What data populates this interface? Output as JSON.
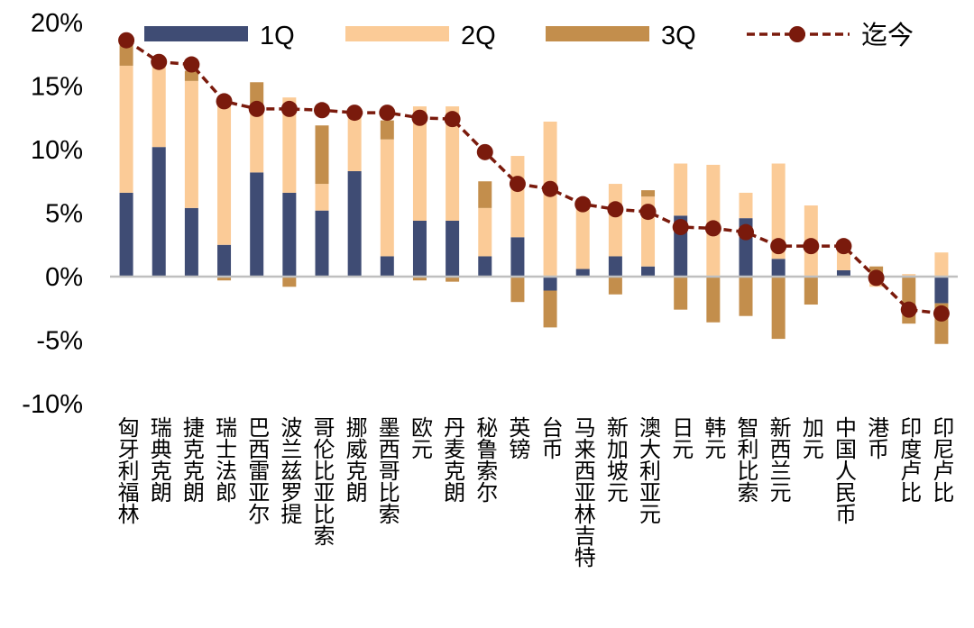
{
  "chart_data": {
    "type": "bar",
    "stacked": true,
    "categories": [
      "匈牙利福林",
      "瑞典克朗",
      "捷克克朗",
      "瑞士法郎",
      "巴西雷亚尔",
      "波兰兹罗提",
      "哥伦比亚比索",
      "挪威克朗",
      "墨西哥比索",
      "欧元",
      "丹麦克朗",
      "秘鲁索尔",
      "英镑",
      "台币",
      "马来西亚林吉特",
      "新加坡元",
      "澳大利亚元",
      "日元",
      "韩元",
      "智利比索",
      "新西兰元",
      "加元",
      "中国人民币",
      "港币",
      "印度卢比",
      "印尼卢比"
    ],
    "series": [
      {
        "name": "1Q",
        "color": "#3F4C74",
        "values": [
          6.6,
          10.2,
          5.4,
          2.5,
          8.2,
          6.6,
          5.2,
          8.3,
          1.6,
          4.4,
          4.4,
          1.6,
          3.1,
          -1.1,
          0.6,
          1.6,
          0.8,
          4.8,
          0.0,
          4.6,
          1.4,
          0.0,
          0.5,
          0.0,
          0.0,
          -2.1
        ]
      },
      {
        "name": "2Q",
        "color": "#FBCB97",
        "values": [
          10.0,
          6.7,
          10.0,
          11.2,
          4.8,
          7.5,
          2.1,
          4.6,
          9.2,
          9.0,
          9.0,
          3.8,
          6.4,
          12.2,
          5.0,
          5.7,
          5.5,
          4.1,
          8.8,
          2.0,
          7.5,
          5.6,
          1.9,
          -0.8,
          0.2,
          1.9
        ]
      },
      {
        "name": "3Q",
        "color": "#C38E4C",
        "values": [
          1.8,
          0.0,
          0.8,
          -0.3,
          2.3,
          -0.8,
          4.6,
          0.0,
          1.5,
          -0.3,
          -0.4,
          2.1,
          -2.0,
          -2.9,
          0.0,
          -1.4,
          0.5,
          -2.6,
          -3.6,
          -3.1,
          -4.9,
          -2.2,
          0.0,
          0.8,
          -3.7,
          -3.2
        ]
      }
    ],
    "line": {
      "name": "迄今",
      "color": "#7A1A0C",
      "values": [
        18.6,
        16.9,
        16.7,
        13.8,
        13.2,
        13.2,
        13.1,
        12.9,
        12.9,
        12.5,
        12.4,
        9.8,
        7.3,
        6.9,
        5.7,
        5.3,
        5.1,
        3.9,
        3.8,
        3.5,
        2.4,
        2.4,
        2.4,
        -0.1,
        -2.6,
        -2.9
      ]
    },
    "yticks": [
      "20%",
      "15%",
      "10%",
      "5%",
      "0%",
      "-5%",
      "-10%"
    ],
    "ylim": [
      -10,
      20
    ],
    "grid": false,
    "legend_position": "top"
  }
}
